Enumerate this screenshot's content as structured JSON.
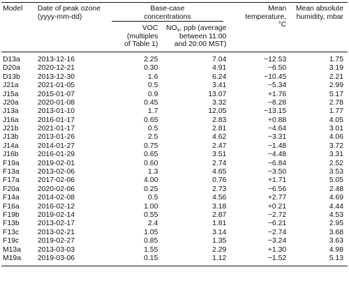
{
  "headers": {
    "model": "Model",
    "date_line1": "Date of peak ozone",
    "date_line2": "(yyyy-mm-dd)",
    "base_line1": "Base-case",
    "base_line2": "concentrations",
    "temp_line1": "Mean temperature,",
    "temp_line2": "°C",
    "hum_line1": "Mean absolute",
    "hum_line2": "humidity, mbar",
    "voc_line1": "VOC",
    "voc_line2": "(multiples",
    "voc_line3": "of Table 1)",
    "nox_prefix": "NO",
    "nox_sub": "x",
    "nox_suffix": ", ppb (average",
    "nox_line2": "between 11:00",
    "nox_line3": "and 20:00 MST)"
  },
  "rows": [
    {
      "model": "D13a",
      "date": "2013-12-16",
      "voc": "2.25",
      "nox": "7.04",
      "temp": "−12.53",
      "hum": "1.75"
    },
    {
      "model": "D20a",
      "date": "2020-12-21",
      "voc": "0.30",
      "nox": "4.91",
      "temp": "−6.50",
      "hum": "3.19"
    },
    {
      "model": "D13b",
      "date": "2013-12-30",
      "voc": "1.6",
      "nox": "6.24",
      "temp": "−10.45",
      "hum": "2.21"
    },
    {
      "model": "J21a",
      "date": "2021-01-05",
      "voc": "0.5",
      "nox": "3.41",
      "temp": "−5.34",
      "hum": "2.99"
    },
    {
      "model": "J15a",
      "date": "2015-01-07",
      "voc": "0.9",
      "nox": "13.07",
      "temp": "+1.76",
      "hum": "5.17"
    },
    {
      "model": "J20a",
      "date": "2020-01-08",
      "voc": "0.45",
      "nox": "3.32",
      "temp": "−8.28",
      "hum": "2.78"
    },
    {
      "model": "J13a",
      "date": "2013-01-10",
      "voc": "1.7",
      "nox": "12.05",
      "temp": "−13.15",
      "hum": "1.77"
    },
    {
      "model": "J16a",
      "date": "2016-01-17",
      "voc": "0.65",
      "nox": "2.83",
      "temp": "+0.88",
      "hum": "4.05"
    },
    {
      "model": "J21b",
      "date": "2021-01-17",
      "voc": "0.5",
      "nox": "2.81",
      "temp": "−4.64",
      "hum": "3.01"
    },
    {
      "model": "J13b",
      "date": "2013-01-26",
      "voc": "2.5",
      "nox": "4.62",
      "temp": "−3.31",
      "hum": "4.06"
    },
    {
      "model": "J14a",
      "date": "2014-01-27",
      "voc": "0.75",
      "nox": "2.47",
      "temp": "−1.48",
      "hum": "3.72"
    },
    {
      "model": "J16b",
      "date": "2016-01-29",
      "voc": "0.65",
      "nox": "3.51",
      "temp": "−4.48",
      "hum": "3.31"
    },
    {
      "model": "F19a",
      "date": "2019-02-01",
      "voc": "0.60",
      "nox": "2.74",
      "temp": "−6.84",
      "hum": "2.52"
    },
    {
      "model": "F13a",
      "date": "2013-02-06",
      "voc": "1.3",
      "nox": "4.65",
      "temp": "−3.50",
      "hum": "3.53"
    },
    {
      "model": "F17a",
      "date": "2017-02-06",
      "voc": "4.00",
      "nox": "0.76",
      "temp": "+1.71",
      "hum": "5.05"
    },
    {
      "model": "F20a",
      "date": "2020-02-06",
      "voc": "0.25",
      "nox": "2.73",
      "temp": "−6.56",
      "hum": "2.48"
    },
    {
      "model": "F14a",
      "date": "2014-02-08",
      "voc": "0.5",
      "nox": "4.56",
      "temp": "+2.77",
      "hum": "4.69"
    },
    {
      "model": "F16a",
      "date": "2016-02-12",
      "voc": "1.00",
      "nox": "3.18",
      "temp": "+0.21",
      "hum": "4.44"
    },
    {
      "model": "F19b",
      "date": "2019-02-14",
      "voc": "0.55",
      "nox": "2.87",
      "temp": "−2.72",
      "hum": "4.53"
    },
    {
      "model": "F13b",
      "date": "2013-02-17",
      "voc": "2.4",
      "nox": "1.81",
      "temp": "−6.21",
      "hum": "2.95"
    },
    {
      "model": "F13c",
      "date": "2013-02-21",
      "voc": "1.05",
      "nox": "3.14",
      "temp": "−2.74",
      "hum": "3.68"
    },
    {
      "model": "F19c",
      "date": "2019-02-27",
      "voc": "0.85",
      "nox": "1.35",
      "temp": "−3.24",
      "hum": "3.63"
    },
    {
      "model": "M13a",
      "date": "2013-03-03",
      "voc": "1.55",
      "nox": "2.29",
      "temp": "+1.30",
      "hum": "4.98"
    },
    {
      "model": "M19a",
      "date": "2019-03-06",
      "voc": "0.15",
      "nox": "1.12",
      "temp": "−1.52",
      "hum": "5.13"
    }
  ]
}
